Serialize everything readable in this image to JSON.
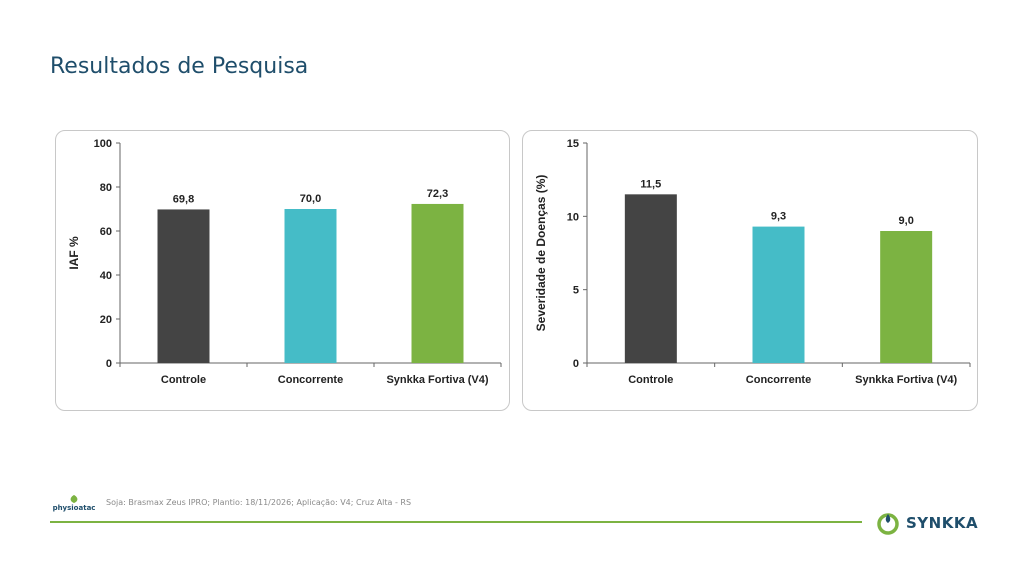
{
  "page": {
    "title": "Resultados de Pesquisa",
    "footer_note": "Soja: Brasmax Zeus IPRO; Plantio: 18/11/2026; Aplicação: V4; Cruz Alta - RS",
    "footer_logo_text": "physioatac",
    "brand_name": "SYNKKA"
  },
  "colors": {
    "controle": "#444444",
    "concorrente": "#45bcc7",
    "synkka": "#7cb342",
    "brand_blue": "#1f4e6b",
    "brand_green": "#7cb342"
  },
  "chart_data": [
    {
      "type": "bar",
      "categories": [
        "Controle",
        "Concorrente",
        "Synkka Fortiva (V4)"
      ],
      "values": [
        69.8,
        70.0,
        72.3
      ],
      "value_labels": [
        "69,8",
        "70,0",
        "72,3"
      ],
      "ylabel": "IAF %",
      "ylim": [
        0,
        100
      ],
      "yticks": [
        0,
        20,
        40,
        60,
        80,
        100
      ],
      "ytick_labels": [
        "0",
        "20",
        "40",
        "60",
        "80",
        "100"
      ],
      "grid": false
    },
    {
      "type": "bar",
      "categories": [
        "Controle",
        "Concorrente",
        "Synkka Fortiva (V4)"
      ],
      "values": [
        11.5,
        9.3,
        9.0
      ],
      "value_labels": [
        "11,5",
        "9,3",
        "9,0"
      ],
      "ylabel": "Severidade de Doenças (%)",
      "ylim": [
        0,
        15
      ],
      "yticks": [
        0,
        5,
        10,
        15
      ],
      "ytick_labels": [
        "0",
        "5",
        "10",
        "15"
      ],
      "grid": false
    }
  ]
}
